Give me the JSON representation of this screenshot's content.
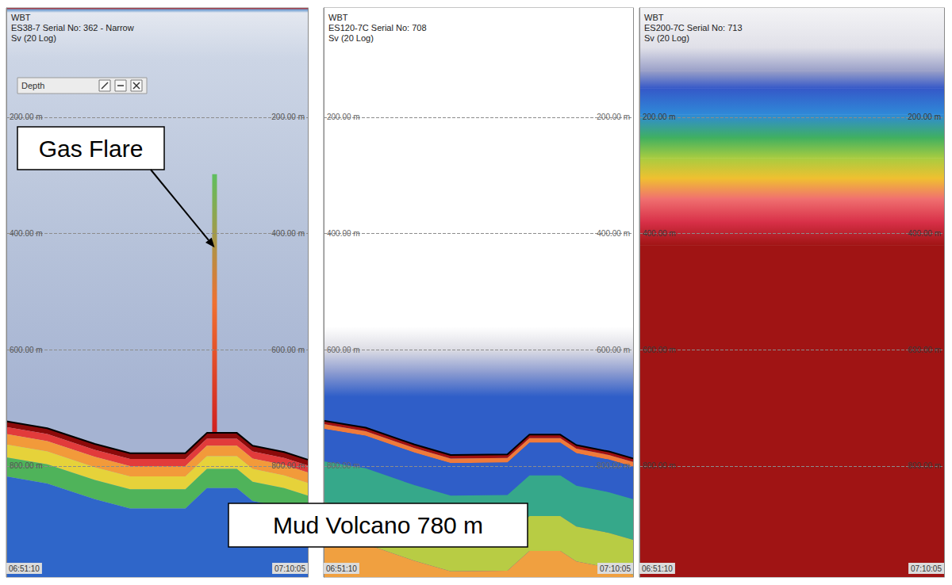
{
  "chart_data": [
    {
      "type": "echogram",
      "header": [
        "WBT",
        "ES38-7 Serial No: 362 - Narrow",
        "Sv (20 Log)"
      ],
      "toolbar": "Depth",
      "xlim": [
        "06:51:10",
        "07:10:05"
      ],
      "xticks": [
        "06:51:10",
        "07:10:05"
      ],
      "ylim": [
        12,
        991
      ],
      "yticks": [
        {
          "value": 200,
          "label": "200.00 m"
        },
        {
          "value": 400,
          "label": "400.00 m"
        },
        {
          "value": 600,
          "label": "600.00 m"
        },
        {
          "value": 800,
          "label": "800.00 m"
        }
      ],
      "grid": true,
      "water_column": [
        {
          "depth": 12,
          "color": "#b03030"
        },
        {
          "depth": 15,
          "color": "#6a9ad0"
        },
        {
          "depth": 20,
          "color": "#e4e8f0"
        },
        {
          "depth": 100,
          "color": "#ccd5e5"
        },
        {
          "depth": 400,
          "color": "#b7c3da"
        },
        {
          "depth": 700,
          "color": "#a5b3d2"
        },
        {
          "depth": 991,
          "color": "#a5b3d2"
        }
      ],
      "seabed": {
        "x": [
          "06:51:10",
          "06:53:44",
          "06:56:43",
          "06:58:56",
          "07:02:24",
          "07:03:45",
          "07:05:38",
          "07:06:37",
          "07:08:36",
          "07:10:05"
        ],
        "values": [
          723,
          735,
          762,
          778,
          778,
          743,
          743,
          765,
          776,
          789
        ],
        "color": "#000000"
      },
      "subbottom_layers": [
        {
          "top": 0,
          "bottom": 10,
          "color": "#8b0a0a"
        },
        {
          "top": 10,
          "bottom": 22,
          "color": "#e23b3b"
        },
        {
          "top": 22,
          "bottom": 40,
          "color": "#f29a3a"
        },
        {
          "top": 40,
          "bottom": 62,
          "color": "#e6d23a"
        },
        {
          "top": 62,
          "bottom": 95,
          "color": "#4fb35a"
        },
        {
          "top": 95,
          "bottom": 300,
          "color": "#2f66c9"
        }
      ],
      "gas_flare": {
        "x": "07:04:14",
        "top": 298,
        "bottom": 743,
        "colors": [
          "#5fbf5f",
          "#f07030",
          "#d02020"
        ]
      }
    },
    {
      "type": "echogram",
      "header": [
        "WBT",
        "ES120-7C Serial No: 708",
        "Sv (20 Log)"
      ],
      "xlim": [
        "06:51:10",
        "07:10:05"
      ],
      "xticks": [
        "06:51:10",
        "07:10:05"
      ],
      "ylim": [
        12,
        991
      ],
      "yticks": [
        {
          "value": 200,
          "label": "200.00 m"
        },
        {
          "value": 400,
          "label": "400.00 m"
        },
        {
          "value": 600,
          "label": "600.00 m"
        },
        {
          "value": 800,
          "label": "800.00 m"
        }
      ],
      "grid": true,
      "water_column": [
        {
          "depth": 12,
          "color": "#ffffff"
        },
        {
          "depth": 560,
          "color": "#ffffff"
        },
        {
          "depth": 600,
          "color": "#dcdce4"
        },
        {
          "depth": 640,
          "color": "#8a9ad0"
        },
        {
          "depth": 680,
          "color": "#2f5ec8"
        },
        {
          "depth": 991,
          "color": "#2f5ec8"
        }
      ],
      "seabed": {
        "x": [
          "06:51:10",
          "06:53:44",
          "06:56:43",
          "06:58:56",
          "07:02:24",
          "07:03:45",
          "07:05:38",
          "07:06:37",
          "07:08:36",
          "07:10:05"
        ],
        "values": [
          722,
          734,
          763,
          781,
          780,
          746,
          746,
          764,
          775,
          787
        ],
        "color": "#000000"
      },
      "subbottom_layers": [
        {
          "top": 0,
          "bottom": 6,
          "color": "#a01010"
        },
        {
          "top": 6,
          "bottom": 14,
          "color": "#f07a3a"
        },
        {
          "top": 14,
          "bottom": 70,
          "color": "#2f5ec8"
        },
        {
          "top": 70,
          "bottom": 140,
          "color": "#36a88a"
        },
        {
          "top": 140,
          "bottom": 200,
          "color": "#b8cc44"
        },
        {
          "top": 200,
          "bottom": 300,
          "color": "#f0a040"
        }
      ]
    },
    {
      "type": "echogram",
      "header": [
        "WBT",
        "ES200-7C Serial No: 713",
        "Sv (20 Log)"
      ],
      "xlim": [
        "06:51:10",
        "07:10:05"
      ],
      "xticks": [
        "06:51:10",
        "07:10:05"
      ],
      "ylim": [
        12,
        991
      ],
      "yticks": [
        {
          "value": 200,
          "label": "200.00 m"
        },
        {
          "value": 400,
          "label": "400.00 m"
        },
        {
          "value": 600,
          "label": "600.00 m"
        },
        {
          "value": 800,
          "label": "800.00 m"
        }
      ],
      "grid": true,
      "water_column": [
        {
          "depth": 12,
          "color": "#f4f4f6"
        },
        {
          "depth": 80,
          "color": "#e0e0e8"
        },
        {
          "depth": 120,
          "color": "#9aa0c8"
        },
        {
          "depth": 150,
          "color": "#3558c8"
        },
        {
          "depth": 195,
          "color": "#2f8ad8"
        },
        {
          "depth": 235,
          "color": "#40b060"
        },
        {
          "depth": 270,
          "color": "#a8cc40"
        },
        {
          "depth": 305,
          "color": "#f0c030"
        },
        {
          "depth": 340,
          "color": "#f07070"
        },
        {
          "depth": 380,
          "color": "#d83048"
        },
        {
          "depth": 420,
          "color": "#a01414"
        },
        {
          "depth": 991,
          "color": "#a01414"
        }
      ]
    }
  ],
  "annotations": [
    {
      "text": "Gas Flare",
      "target": {
        "panel": 0,
        "x": "07:04:14",
        "depth": 424
      }
    },
    {
      "text": "Mud Volcano 780 m"
    }
  ]
}
